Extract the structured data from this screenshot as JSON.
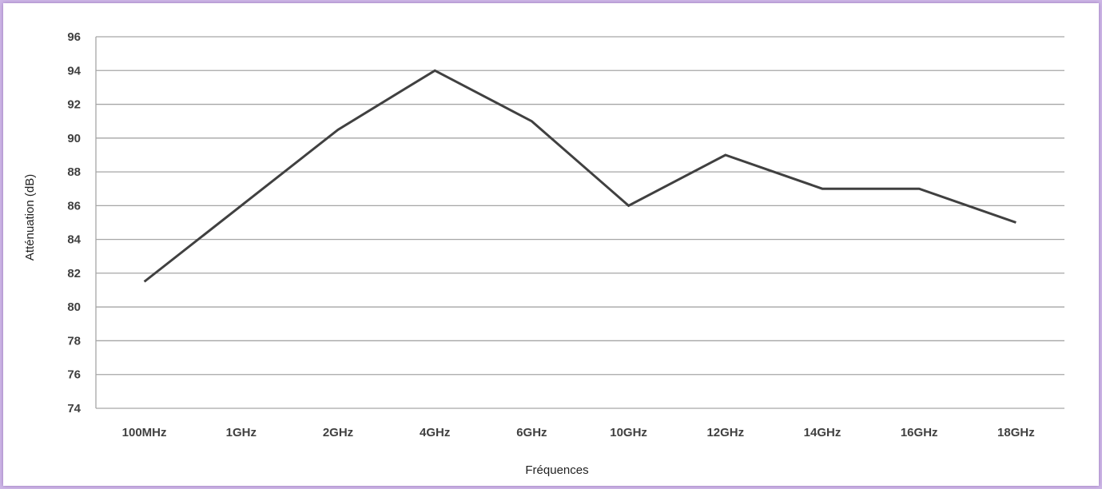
{
  "chart_data": {
    "type": "line",
    "xlabel": "Fréquences",
    "ylabel": "Atténuation  (dB)",
    "categories": [
      "100MHz",
      "1GHz",
      "2GHz",
      "4GHz",
      "6GHz",
      "10GHz",
      "12GHz",
      "14GHz",
      "16GHz",
      "18GHz"
    ],
    "series": [
      {
        "values": [
          81.5,
          86,
          90.5,
          94,
          91,
          86,
          89,
          87,
          87,
          85
        ],
        "color": "#404040"
      }
    ],
    "ylim": [
      74,
      96
    ],
    "yticks": [
      74,
      76,
      78,
      80,
      82,
      84,
      86,
      88,
      90,
      92,
      94,
      96
    ],
    "grid": true,
    "legend": "none"
  },
  "colors": {
    "background_border": "#cdb6e6",
    "gridline": "#a6a6a6",
    "line": "#404040"
  }
}
